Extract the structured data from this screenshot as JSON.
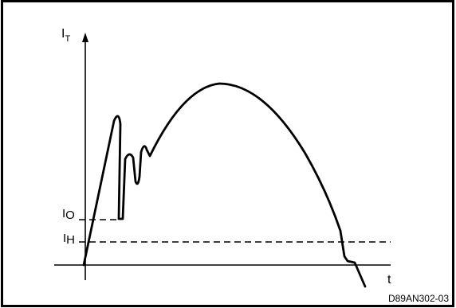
{
  "diagram": {
    "y_axis": {
      "main": "I",
      "sub": "T"
    },
    "x_axis": {
      "main": "t"
    },
    "levels": [
      {
        "main": "I",
        "sub": "O"
      },
      {
        "main": "I",
        "sub": "H"
      }
    ],
    "reference": "D89AN302-03"
  }
}
